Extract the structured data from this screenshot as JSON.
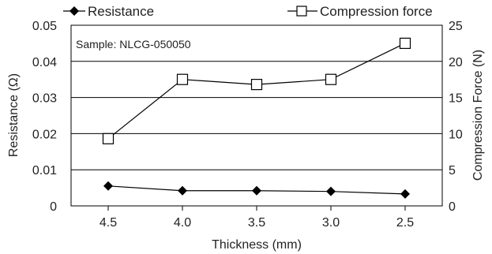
{
  "chart_data": {
    "type": "line",
    "categories": [
      "4.5",
      "4.0",
      "3.5",
      "3.0",
      "2.5"
    ],
    "xlabel": "Thickness (mm)",
    "ylabel_left": "Resistance (Ω)",
    "ylabel_right": "Compression Force (N)",
    "ylim_left": [
      0,
      0.05
    ],
    "yticks_left": [
      "0",
      "0.01",
      "0.02",
      "0.03",
      "0.04",
      "0.05"
    ],
    "ylim_right": [
      0,
      25
    ],
    "yticks_right": [
      "0",
      "5",
      "10",
      "15",
      "20",
      "25"
    ],
    "grid": "horizontal",
    "legend_position": "top",
    "annotation": "Sample: NLCG-050050",
    "series": [
      {
        "name": "Resistance",
        "axis": "left",
        "marker": "diamond-filled",
        "values": [
          0.0055,
          0.0042,
          0.0042,
          0.004,
          0.0033
        ]
      },
      {
        "name": "Compression force",
        "axis": "right",
        "marker": "square-open",
        "values": [
          9.3,
          17.5,
          16.8,
          17.5,
          22.5
        ]
      }
    ]
  }
}
